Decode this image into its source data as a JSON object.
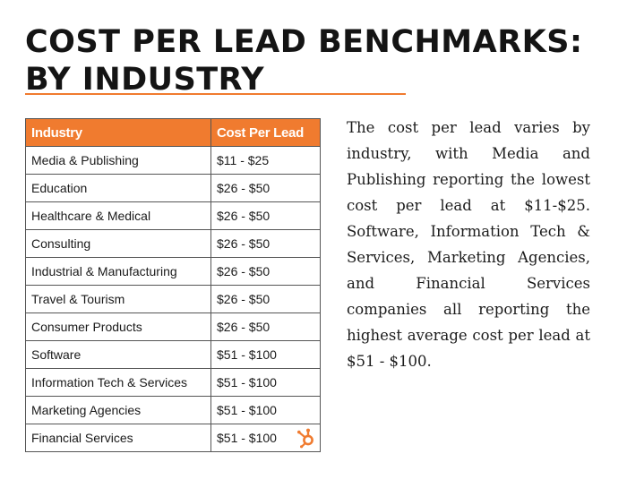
{
  "title": {
    "line1": "COST PER LEAD BENCHMARKS:",
    "line2": "BY INDUSTRY"
  },
  "accent_color": "#f07b2f",
  "table": {
    "headers": [
      "Industry",
      "Cost Per Lead"
    ],
    "rows": [
      [
        "Media & Publishing",
        "$11 - $25"
      ],
      [
        "Education",
        "$26 - $50"
      ],
      [
        "Healthcare & Medical",
        "$26 - $50"
      ],
      [
        "Consulting",
        "$26 - $50"
      ],
      [
        "Industrial & Manufacturing",
        "$26 - $50"
      ],
      [
        "Travel & Tourism",
        "$26 - $50"
      ],
      [
        "Consumer Products",
        "$26 - $50"
      ],
      [
        "Software",
        "$51 - $100"
      ],
      [
        "Information Tech & Services",
        "$51 - $100"
      ],
      [
        "Marketing Agencies",
        "$51 - $100"
      ],
      [
        "Financial Services",
        "$51 - $100"
      ]
    ]
  },
  "logo_icon": "hubspot-logo-icon",
  "description": "The cost per lead varies by industry, with Media and Publishing reporting the lowest cost per lead at $11-$25. Software, Information Tech & Services, Marketing Agencies, and Financial Services companies all reporting the highest average cost per lead at $51 - $100."
}
